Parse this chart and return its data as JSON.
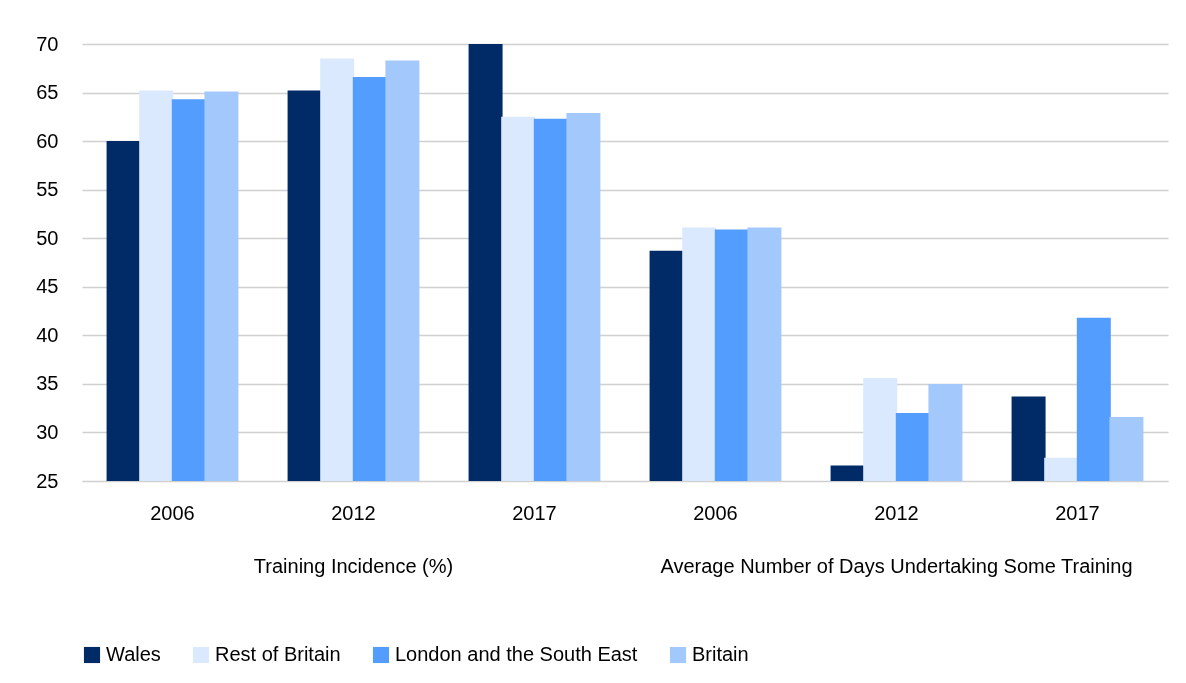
{
  "chart_data": {
    "type": "bar",
    "categories": [
      "2006",
      "2012",
      "2017",
      "2006",
      "2012",
      "2017"
    ],
    "series": [
      {
        "name": "Wales",
        "color": "#002b66",
        "values": [
          60.0,
          65.2,
          70.0,
          48.7,
          26.6,
          33.7
        ]
      },
      {
        "name": "Rest of Britain",
        "color": "#dbe9fe",
        "values": [
          65.2,
          68.5,
          62.5,
          51.1,
          35.6,
          27.4
        ]
      },
      {
        "name": "London and the South East",
        "color": "#539dff",
        "values": [
          64.3,
          66.6,
          62.3,
          50.9,
          32.0,
          41.8
        ]
      },
      {
        "name": "Britain",
        "color": "#a3c8fc",
        "values": [
          65.1,
          68.3,
          62.9,
          51.1,
          35.0,
          31.6
        ]
      }
    ],
    "annotations": [
      "Training Incidence (%)",
      "Average Number of Days Undertaking Some Training"
    ],
    "ylim": [
      25,
      70
    ],
    "yticks": [
      25,
      30,
      35,
      40,
      45,
      50,
      55,
      60,
      65,
      70
    ],
    "grid": "y",
    "legend": "bottom"
  }
}
